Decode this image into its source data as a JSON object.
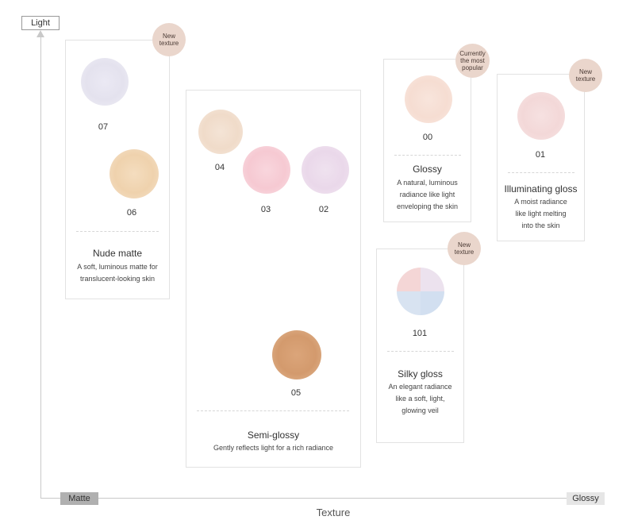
{
  "axes": {
    "y_label": "Light",
    "x_start_label": "Matte",
    "x_end_label": "Glossy",
    "x_title": "Texture"
  },
  "groups": {
    "nude_matte": {
      "name": "Nude matte",
      "desc": "A soft, luminous matte for translucent-looking skin",
      "badge": "New\ntexture",
      "shades": [
        {
          "code": "07",
          "color": "#e4e2ee"
        },
        {
          "code": "06",
          "color": "#efd2ad"
        }
      ]
    },
    "semi_glossy": {
      "name": "Semi-glossy",
      "desc": "Gently reflects light for a rich radiance",
      "shades": [
        {
          "code": "04",
          "color": "#f0dbc9"
        },
        {
          "code": "03",
          "color": "#f6c9d2"
        },
        {
          "code": "02",
          "color": "#ead8ea"
        },
        {
          "code": "05",
          "color": "#d39a6d"
        }
      ]
    },
    "glossy": {
      "name": "Glossy",
      "desc": "A natural, luminous radiance like light enveloping the skin",
      "badge": "Currently\nthe most\npopular",
      "shades": [
        {
          "code": "00",
          "color": "#f6ddd2"
        }
      ]
    },
    "illuminating_gloss": {
      "name": "Illuminating gloss",
      "desc": "A moist radiance like light melting into the skin",
      "badge": "New\ntexture",
      "shades": [
        {
          "code": "01",
          "color": "#f3d8d8"
        }
      ]
    },
    "silky_gloss": {
      "name": "Silky gloss",
      "desc": "An elegant radiance like a soft, light, glowing veil",
      "badge": "New\ntexture",
      "shades": [
        {
          "code": "101",
          "colors": [
            "#f4d6d6",
            "#ece2ee",
            "#d2dff0",
            "#f1e4e4"
          ]
        }
      ]
    }
  },
  "colors": {
    "badge": "#ead6cc",
    "border": "#e2e2e2",
    "axis": "#c9c9c9"
  }
}
